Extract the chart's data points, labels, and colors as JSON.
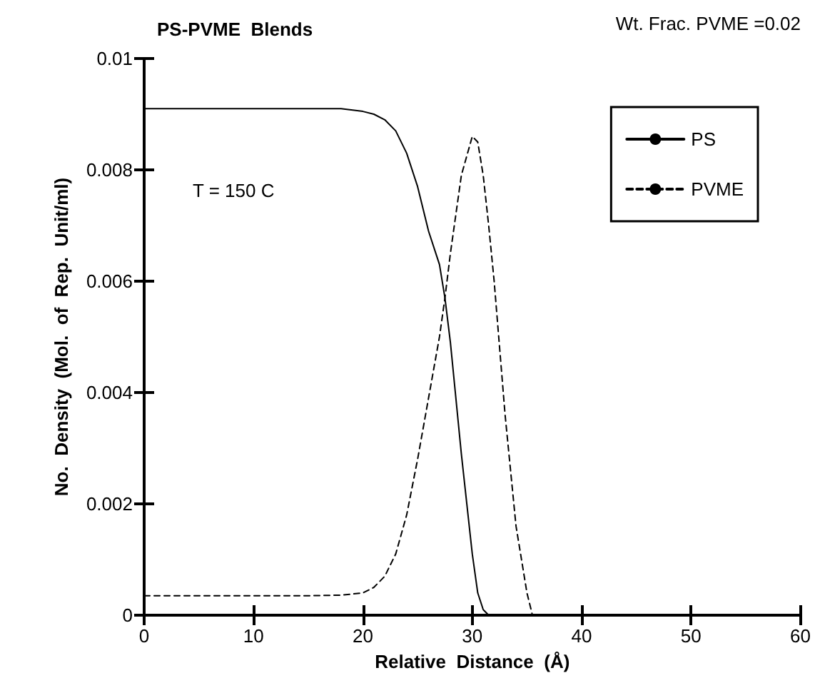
{
  "chart_data": {
    "type": "line",
    "title": "PS-PVME  Blends",
    "xlabel": "Relative  Distance  (Å)",
    "ylabel": "No.  Density  (Mol.  of  Rep.  Unit/ml)",
    "annotations": [
      "Wt. Frac. PVME =0.02",
      "T = 150 C"
    ],
    "x": [
      0,
      5,
      10,
      15,
      18,
      20,
      21,
      22,
      23,
      24,
      25,
      26,
      27,
      27.5,
      28,
      29,
      30,
      30.5,
      31,
      31.5,
      32,
      33,
      34,
      35,
      35.5
    ],
    "series": [
      {
        "name": "PS",
        "color": "#000000",
        "line_style": "solid",
        "values": [
          0.0091,
          0.0091,
          0.0091,
          0.0091,
          0.0091,
          0.00905,
          0.009,
          0.0089,
          0.0087,
          0.0083,
          0.0077,
          0.0069,
          0.0063,
          0.0057,
          0.0049,
          0.0029,
          0.0011,
          0.0004,
          0.0001,
          0,
          0,
          0,
          0,
          0,
          0
        ]
      },
      {
        "name": "PVME",
        "color": "#000000",
        "line_style": "dashed",
        "values": [
          0.00035,
          0.00035,
          0.00035,
          0.00035,
          0.00036,
          0.0004,
          0.0005,
          0.0007,
          0.0011,
          0.0018,
          0.0028,
          0.0039,
          0.005,
          0.0057,
          0.0065,
          0.0079,
          0.0086,
          0.0085,
          0.0079,
          0.007,
          0.006,
          0.0036,
          0.0016,
          0.0004,
          0
        ]
      }
    ],
    "xlim": [
      0,
      60
    ],
    "xticks": [
      0,
      10,
      20,
      30,
      40,
      50,
      60
    ],
    "ylim": [
      0,
      0.01
    ],
    "yticks": [
      0,
      0.002,
      0.004,
      0.006,
      0.008,
      0.01
    ],
    "grid": false,
    "legend": "top right",
    "marker": "none"
  }
}
